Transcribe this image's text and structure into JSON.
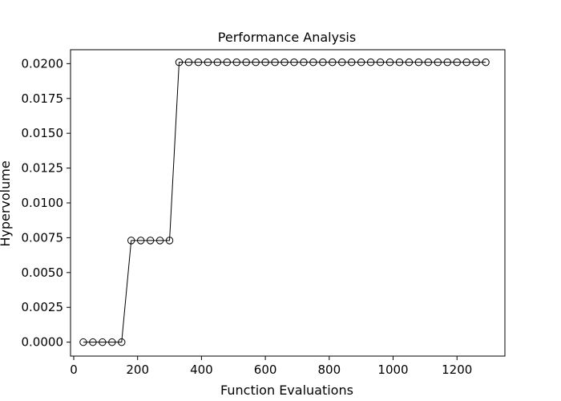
{
  "chart_data": {
    "type": "line",
    "title": "Performance Analysis",
    "xlabel": "Function Evaluations",
    "ylabel": "Hypervolume",
    "xlim": [
      -10,
      1350
    ],
    "ylim": [
      -0.001,
      0.021
    ],
    "xticks": [
      0,
      200,
      400,
      600,
      800,
      1000,
      1200
    ],
    "xtick_labels": [
      "0",
      "200",
      "400",
      "600",
      "800",
      "1000",
      "1200"
    ],
    "yticks": [
      0.0,
      0.0025,
      0.005,
      0.0075,
      0.01,
      0.0125,
      0.015,
      0.0175,
      0.02
    ],
    "ytick_labels": [
      "0.0000",
      "0.0025",
      "0.0050",
      "0.0075",
      "0.0100",
      "0.0125",
      "0.0150",
      "0.0175",
      "0.0200"
    ],
    "grid": false,
    "line_color": "#000000",
    "marker": "open-circle",
    "series": [
      {
        "x": [
          30,
          60,
          90,
          120,
          150,
          180,
          210,
          240,
          270,
          300,
          330,
          360,
          390,
          420,
          450,
          480,
          510,
          540,
          570,
          600,
          630,
          660,
          690,
          720,
          750,
          780,
          810,
          840,
          870,
          900,
          930,
          960,
          990,
          1020,
          1050,
          1080,
          1110,
          1140,
          1170,
          1200,
          1230,
          1260,
          1290
        ],
        "values": [
          0.0,
          0.0,
          0.0,
          0.0,
          0.0,
          0.0073,
          0.0073,
          0.0073,
          0.0073,
          0.0073,
          0.0201,
          0.0201,
          0.0201,
          0.0201,
          0.0201,
          0.0201,
          0.0201,
          0.0201,
          0.0201,
          0.0201,
          0.0201,
          0.0201,
          0.0201,
          0.0201,
          0.0201,
          0.0201,
          0.0201,
          0.0201,
          0.0201,
          0.0201,
          0.0201,
          0.0201,
          0.0201,
          0.0201,
          0.0201,
          0.0201,
          0.0201,
          0.0201,
          0.0201,
          0.0201,
          0.0201,
          0.0201,
          0.0201
        ]
      }
    ]
  }
}
